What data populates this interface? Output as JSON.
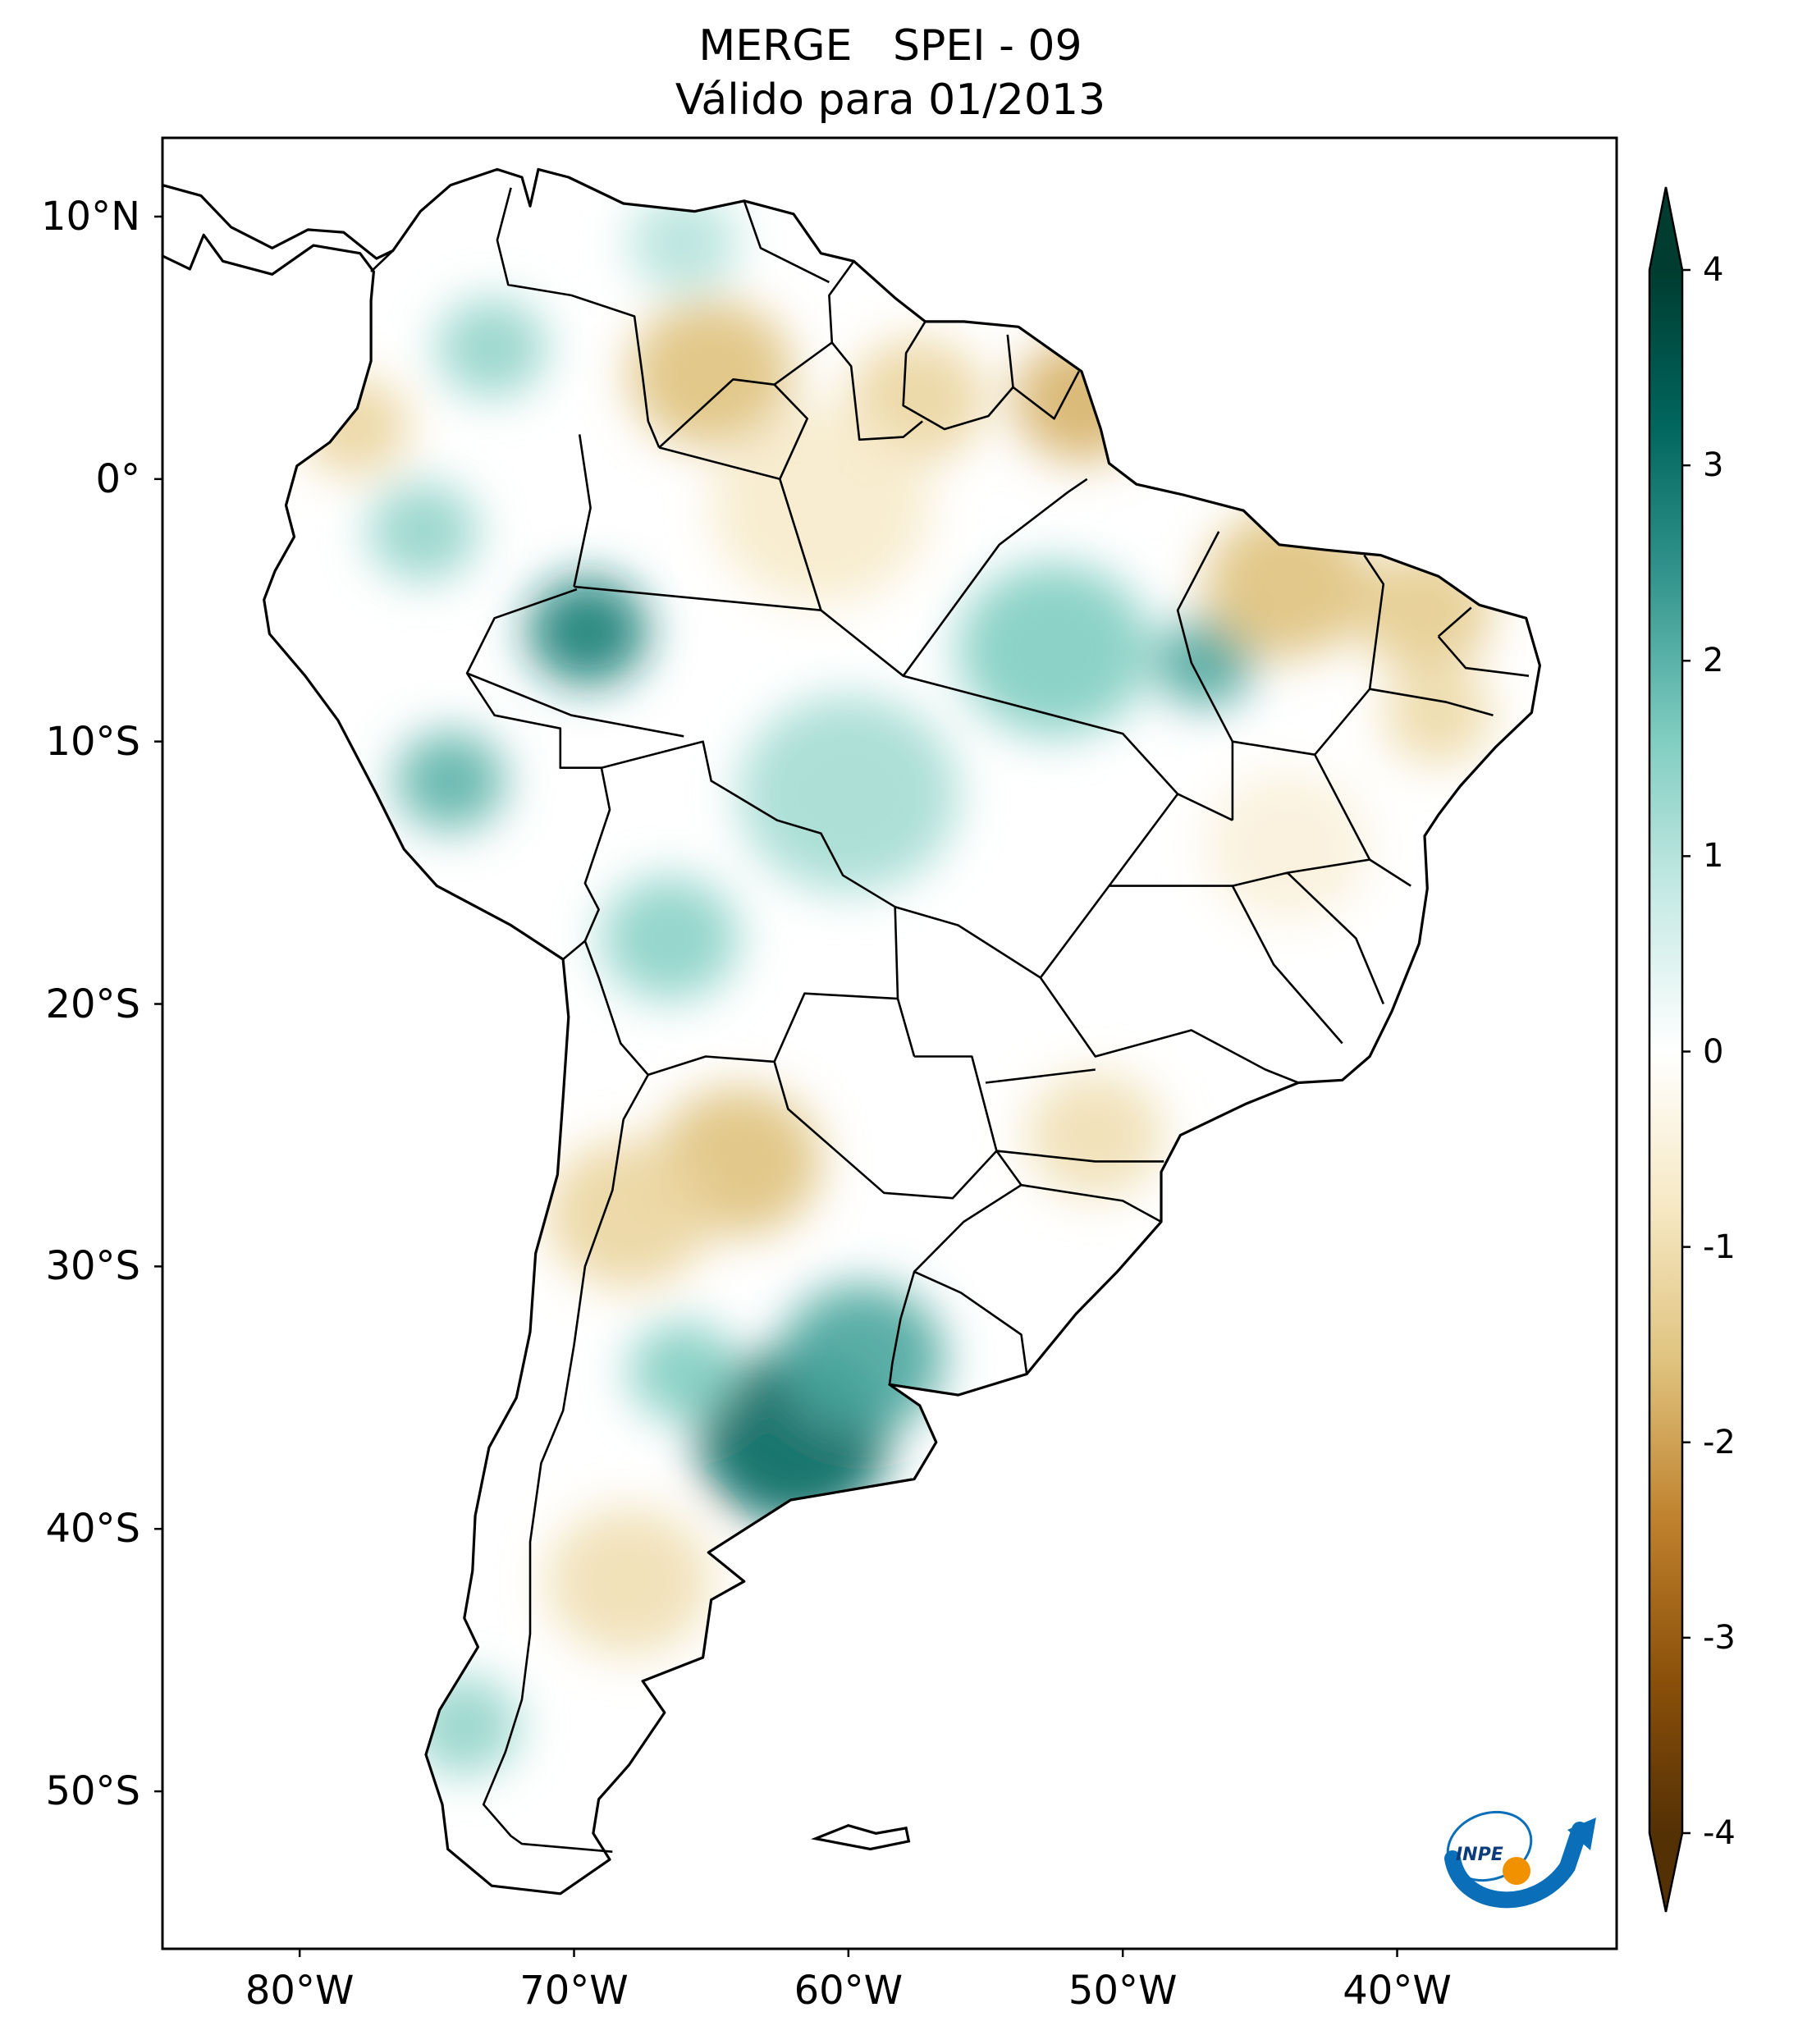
{
  "title": {
    "line1": "MERGE   SPEI - 09",
    "line2": "Válido para 01/2013"
  },
  "map": {
    "projection": "PlateCarree",
    "lon_range": [
      -85,
      -32
    ],
    "lat_range": [
      -56,
      13
    ],
    "lat_ticks": [
      {
        "value": 10,
        "label": "10°N"
      },
      {
        "value": 0,
        "label": "0°"
      },
      {
        "value": -10,
        "label": "10°S"
      },
      {
        "value": -20,
        "label": "20°S"
      },
      {
        "value": -30,
        "label": "30°S"
      },
      {
        "value": -40,
        "label": "40°S"
      },
      {
        "value": -50,
        "label": "50°S"
      }
    ],
    "lon_ticks": [
      {
        "value": -80,
        "label": "80°W"
      },
      {
        "value": -70,
        "label": "70°W"
      },
      {
        "value": -60,
        "label": "60°W"
      },
      {
        "value": -50,
        "label": "50°W"
      },
      {
        "value": -40,
        "label": "40°W"
      }
    ],
    "anomalies": [
      {
        "lon": -62,
        "lat": -36.5,
        "r": 3.5,
        "v": 3.2
      },
      {
        "lon": -59.5,
        "lat": -33.5,
        "r": 3.0,
        "v": 2.2
      },
      {
        "lon": -66,
        "lat": -34,
        "r": 2.0,
        "v": 1.6
      },
      {
        "lon": -69.5,
        "lat": -5.8,
        "r": 2.2,
        "v": 2.8
      },
      {
        "lon": -74.5,
        "lat": -11.5,
        "r": 2.0,
        "v": 2.0
      },
      {
        "lon": -66.5,
        "lat": -17.5,
        "r": 2.5,
        "v": 1.5
      },
      {
        "lon": -52.5,
        "lat": -6.5,
        "r": 3.5,
        "v": 1.6
      },
      {
        "lon": -47,
        "lat": -7,
        "r": 1.8,
        "v": 2.2
      },
      {
        "lon": -60,
        "lat": -12,
        "r": 4.0,
        "v": 1.2
      },
      {
        "lon": -73,
        "lat": 5,
        "r": 2.0,
        "v": 1.4
      },
      {
        "lon": -75.5,
        "lat": -2,
        "r": 2.0,
        "v": 1.4
      },
      {
        "lon": -74,
        "lat": -47.5,
        "r": 2.0,
        "v": 1.4
      },
      {
        "lon": -66,
        "lat": 9,
        "r": 2.0,
        "v": 1.0
      },
      {
        "lon": -64,
        "lat": -26,
        "r": 3.0,
        "v": -1.6
      },
      {
        "lon": -68,
        "lat": -28,
        "r": 3.0,
        "v": -1.2
      },
      {
        "lon": -44,
        "lat": -4,
        "r": 3.0,
        "v": -1.6
      },
      {
        "lon": -39,
        "lat": -5,
        "r": 2.5,
        "v": -1.4
      },
      {
        "lon": -51.5,
        "lat": 3,
        "r": 2.5,
        "v": -1.8
      },
      {
        "lon": -57.5,
        "lat": 3,
        "r": 2.5,
        "v": -1.2
      },
      {
        "lon": -65,
        "lat": 4,
        "r": 3.0,
        "v": -1.6
      },
      {
        "lon": -78,
        "lat": 2,
        "r": 2.0,
        "v": -1.2
      },
      {
        "lon": -68,
        "lat": -42,
        "r": 3.0,
        "v": -1.0
      },
      {
        "lon": -51,
        "lat": -25,
        "r": 2.5,
        "v": -1.0
      },
      {
        "lon": -61,
        "lat": -1,
        "r": 4.0,
        "v": -0.7
      },
      {
        "lon": -44,
        "lat": -14,
        "r": 3.0,
        "v": -0.5
      },
      {
        "lon": -38.5,
        "lat": -9,
        "r": 2.0,
        "v": -1.1
      }
    ]
  },
  "colorbar": {
    "vmin": -4,
    "vmax": 4,
    "cmap": "BrBG",
    "extend": "both",
    "stops": [
      "#543005",
      "#8c510a",
      "#bf812d",
      "#dfc27d",
      "#f6e8c3",
      "#ffffff",
      "#c7eae5",
      "#80cdc1",
      "#35978f",
      "#01665e",
      "#003c30"
    ],
    "ticks": [
      {
        "value": 4,
        "label": "4"
      },
      {
        "value": 3,
        "label": "3"
      },
      {
        "value": 2,
        "label": "2"
      },
      {
        "value": 1,
        "label": "1"
      },
      {
        "value": 0,
        "label": "0"
      },
      {
        "value": -1,
        "label": "-1"
      },
      {
        "value": -2,
        "label": "-2"
      },
      {
        "value": -3,
        "label": "-3"
      },
      {
        "value": -4,
        "label": "-4"
      }
    ]
  },
  "logo": {
    "text": "INPE",
    "colors": {
      "blue": "#0a6fb8",
      "orange": "#f29100"
    }
  }
}
